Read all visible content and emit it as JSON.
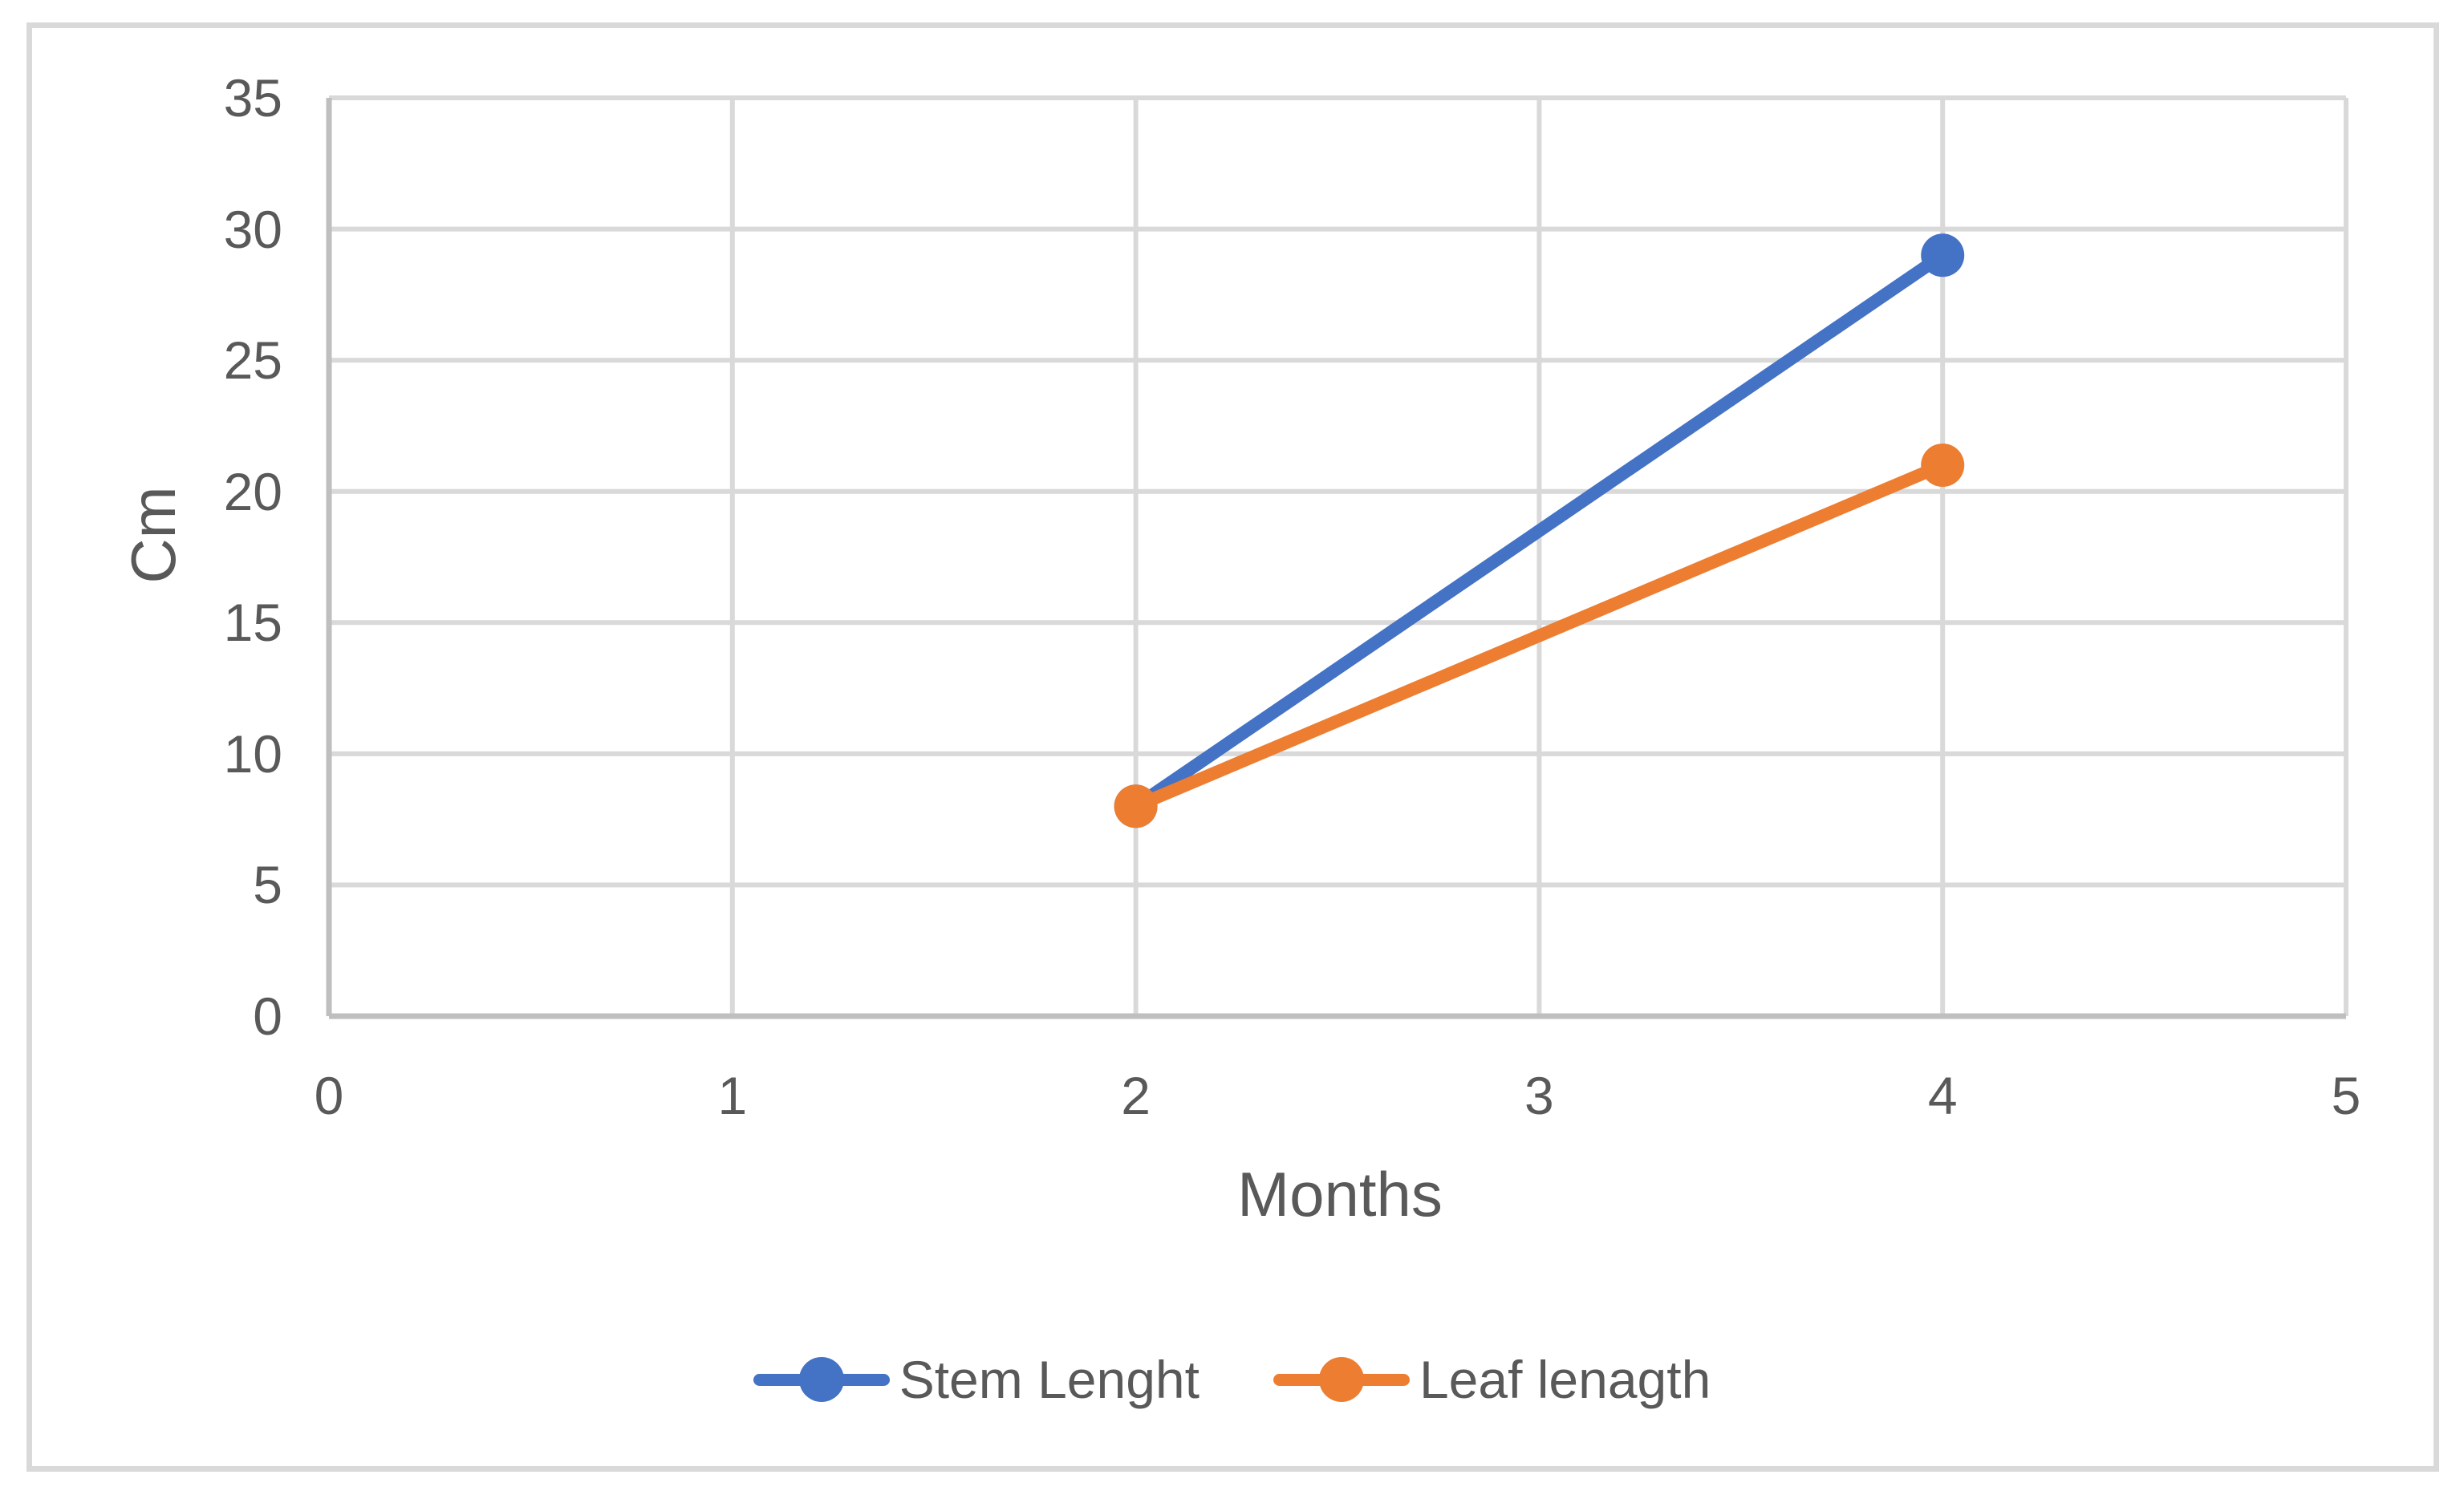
{
  "chart_data": {
    "type": "line",
    "title": "",
    "xlabel": "Months",
    "ylabel": "Cm",
    "xlim": [
      0,
      5
    ],
    "ylim": [
      0,
      35
    ],
    "xticks": [
      0,
      1,
      2,
      3,
      4,
      5
    ],
    "yticks": [
      0,
      5,
      10,
      15,
      20,
      25,
      30,
      35
    ],
    "grid": true,
    "legend_position": "bottom",
    "series": [
      {
        "name": "Stem Lenght",
        "color": "#4472C4",
        "points": [
          {
            "x": 2,
            "y": 8
          },
          {
            "x": 4,
            "y": 29
          }
        ]
      },
      {
        "name": "Leaf lenagth",
        "color": "#ED7D31",
        "points": [
          {
            "x": 2,
            "y": 8
          },
          {
            "x": 4,
            "y": 21
          }
        ]
      }
    ],
    "colors": {
      "gridline": "#D9D9D9",
      "axis_line": "#BFBFBF",
      "text": "#595959",
      "frame_border": "#D9D9D9",
      "background": "#FFFFFF"
    }
  }
}
